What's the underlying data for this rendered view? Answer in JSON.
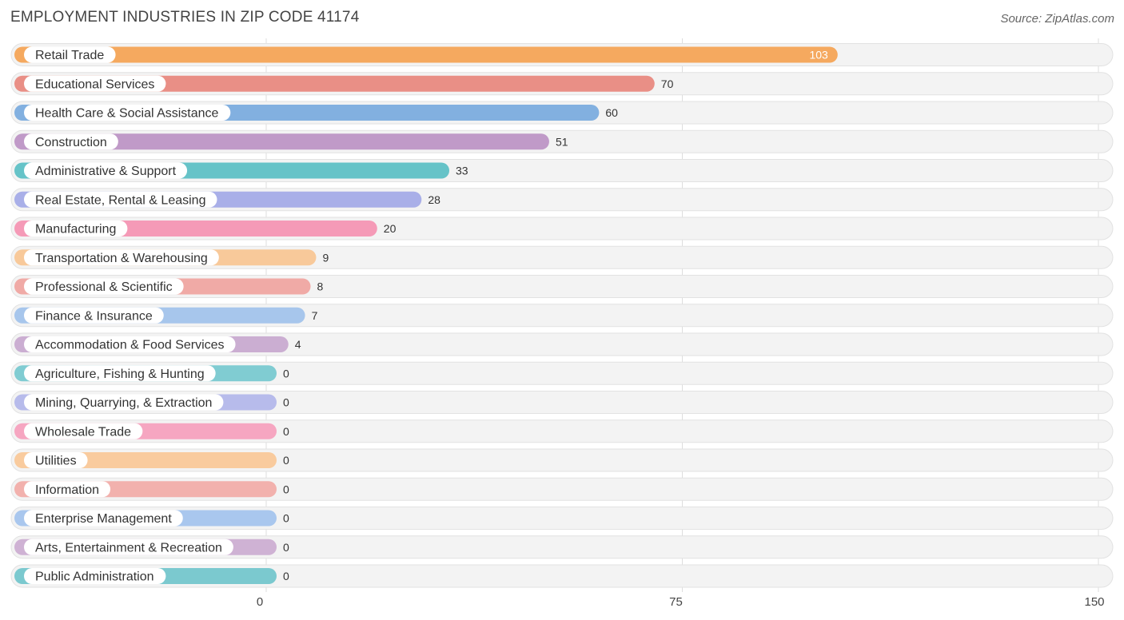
{
  "title": "EMPLOYMENT INDUSTRIES IN ZIP CODE 41174",
  "source": "Source: ZipAtlas.com",
  "chart_data": {
    "type": "bar",
    "orientation": "horizontal",
    "title": "EMPLOYMENT INDUSTRIES IN ZIP CODE 41174",
    "categories": [
      "Retail Trade",
      "Educational Services",
      "Health Care & Social Assistance",
      "Construction",
      "Administrative & Support",
      "Real Estate, Rental & Leasing",
      "Manufacturing",
      "Transportation & Warehousing",
      "Professional & Scientific",
      "Finance & Insurance",
      "Accommodation & Food Services",
      "Agriculture, Fishing & Hunting",
      "Mining, Quarrying, & Extraction",
      "Wholesale Trade",
      "Utilities",
      "Information",
      "Enterprise Management",
      "Arts, Entertainment & Recreation",
      "Public Administration"
    ],
    "values": [
      103,
      70,
      60,
      51,
      33,
      28,
      20,
      9,
      8,
      7,
      4,
      0,
      0,
      0,
      0,
      0,
      0,
      0,
      0
    ],
    "value_labels": [
      "103",
      "70",
      "60",
      "51",
      "33",
      "28",
      "20",
      "9",
      "8",
      "7",
      "4",
      "0",
      "0",
      "0",
      "0",
      "0",
      "0",
      "0",
      "0"
    ],
    "colors": [
      "#f5a95f",
      "#e98f86",
      "#82b0e0",
      "#c09ac8",
      "#66c3c8",
      "#a9afe8",
      "#f59ab7",
      "#f8c99a",
      "#f0aaa6",
      "#a7c6ec",
      "#cbaed2",
      "#80ccd2",
      "#b7bbeb",
      "#f6a6c1",
      "#f9cb9e",
      "#f2b1ad",
      "#a9c7ee",
      "#cfb2d4",
      "#7bc9cf"
    ],
    "xlim": [
      0,
      150
    ],
    "xticks": [
      0,
      75,
      150
    ],
    "xtick_labels": [
      "0",
      "75",
      "150"
    ],
    "grid": true
  }
}
